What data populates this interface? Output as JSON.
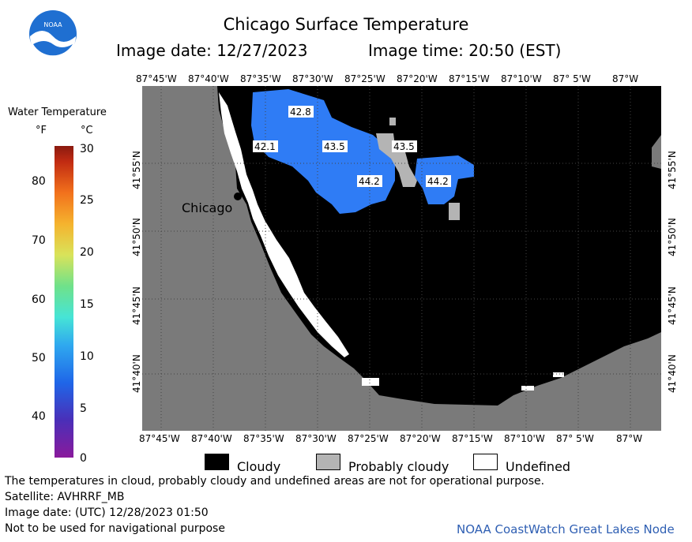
{
  "header": {
    "title": "Chicago Surface Temperature",
    "image_date": "Image date: 12/27/2023",
    "image_time": "Image time: 20:50 (EST)"
  },
  "logo": {
    "text": "NOAA",
    "color": "#1f6fd1"
  },
  "map": {
    "lon_labels": [
      "87°45'W",
      "87°40'W",
      "87°35'W",
      "87°30'W",
      "87°25'W",
      "87°20'W",
      "87°15'W",
      "87°10'W",
      "87° 5'W",
      "87°W"
    ],
    "lon_labels_bottom": [
      "87°45'W",
      "87°40'W",
      "87°35'W",
      "87°30'W",
      "87°25'W",
      "87°20'W",
      "87°15'W",
      "87°10'W",
      "87° 5'W",
      "87°W"
    ],
    "lat_labels": [
      "41°55'N",
      "41°50'N",
      "41°45'N",
      "41°40'N"
    ],
    "city_label": "Chicago",
    "temp_labels": [
      "42.8",
      "42.1",
      "43.5",
      "43.5",
      "44.2",
      "44.2"
    ],
    "colors": {
      "land": "#7a7a7a",
      "cloudy": "#000000",
      "probably_cloudy": "#b4b4b4",
      "undefined": "#ffffff",
      "water_warm": "#2f7cf5"
    }
  },
  "colorbar": {
    "title": "Water Temperature",
    "unit_f": "°F",
    "unit_c": "°C",
    "f_labels": [
      "80",
      "70",
      "60",
      "50",
      "40"
    ],
    "c_labels": [
      "30",
      "25",
      "20",
      "15",
      "10",
      "5",
      "0"
    ]
  },
  "legend": {
    "cloudy": "Cloudy",
    "probably_cloudy": "Probably cloudy",
    "undefined": "Undefined"
  },
  "footer": {
    "note": "The temperatures in cloud, probably cloudy and undefined areas are not for operational purpose.",
    "satellite": "Satellite: AVHRRF_MB",
    "utc_date": "Image date: (UTC) 12/28/2023  01:50",
    "navigation": "Not to be used for navigational purpose",
    "node": "NOAA CoastWatch Great Lakes Node"
  }
}
